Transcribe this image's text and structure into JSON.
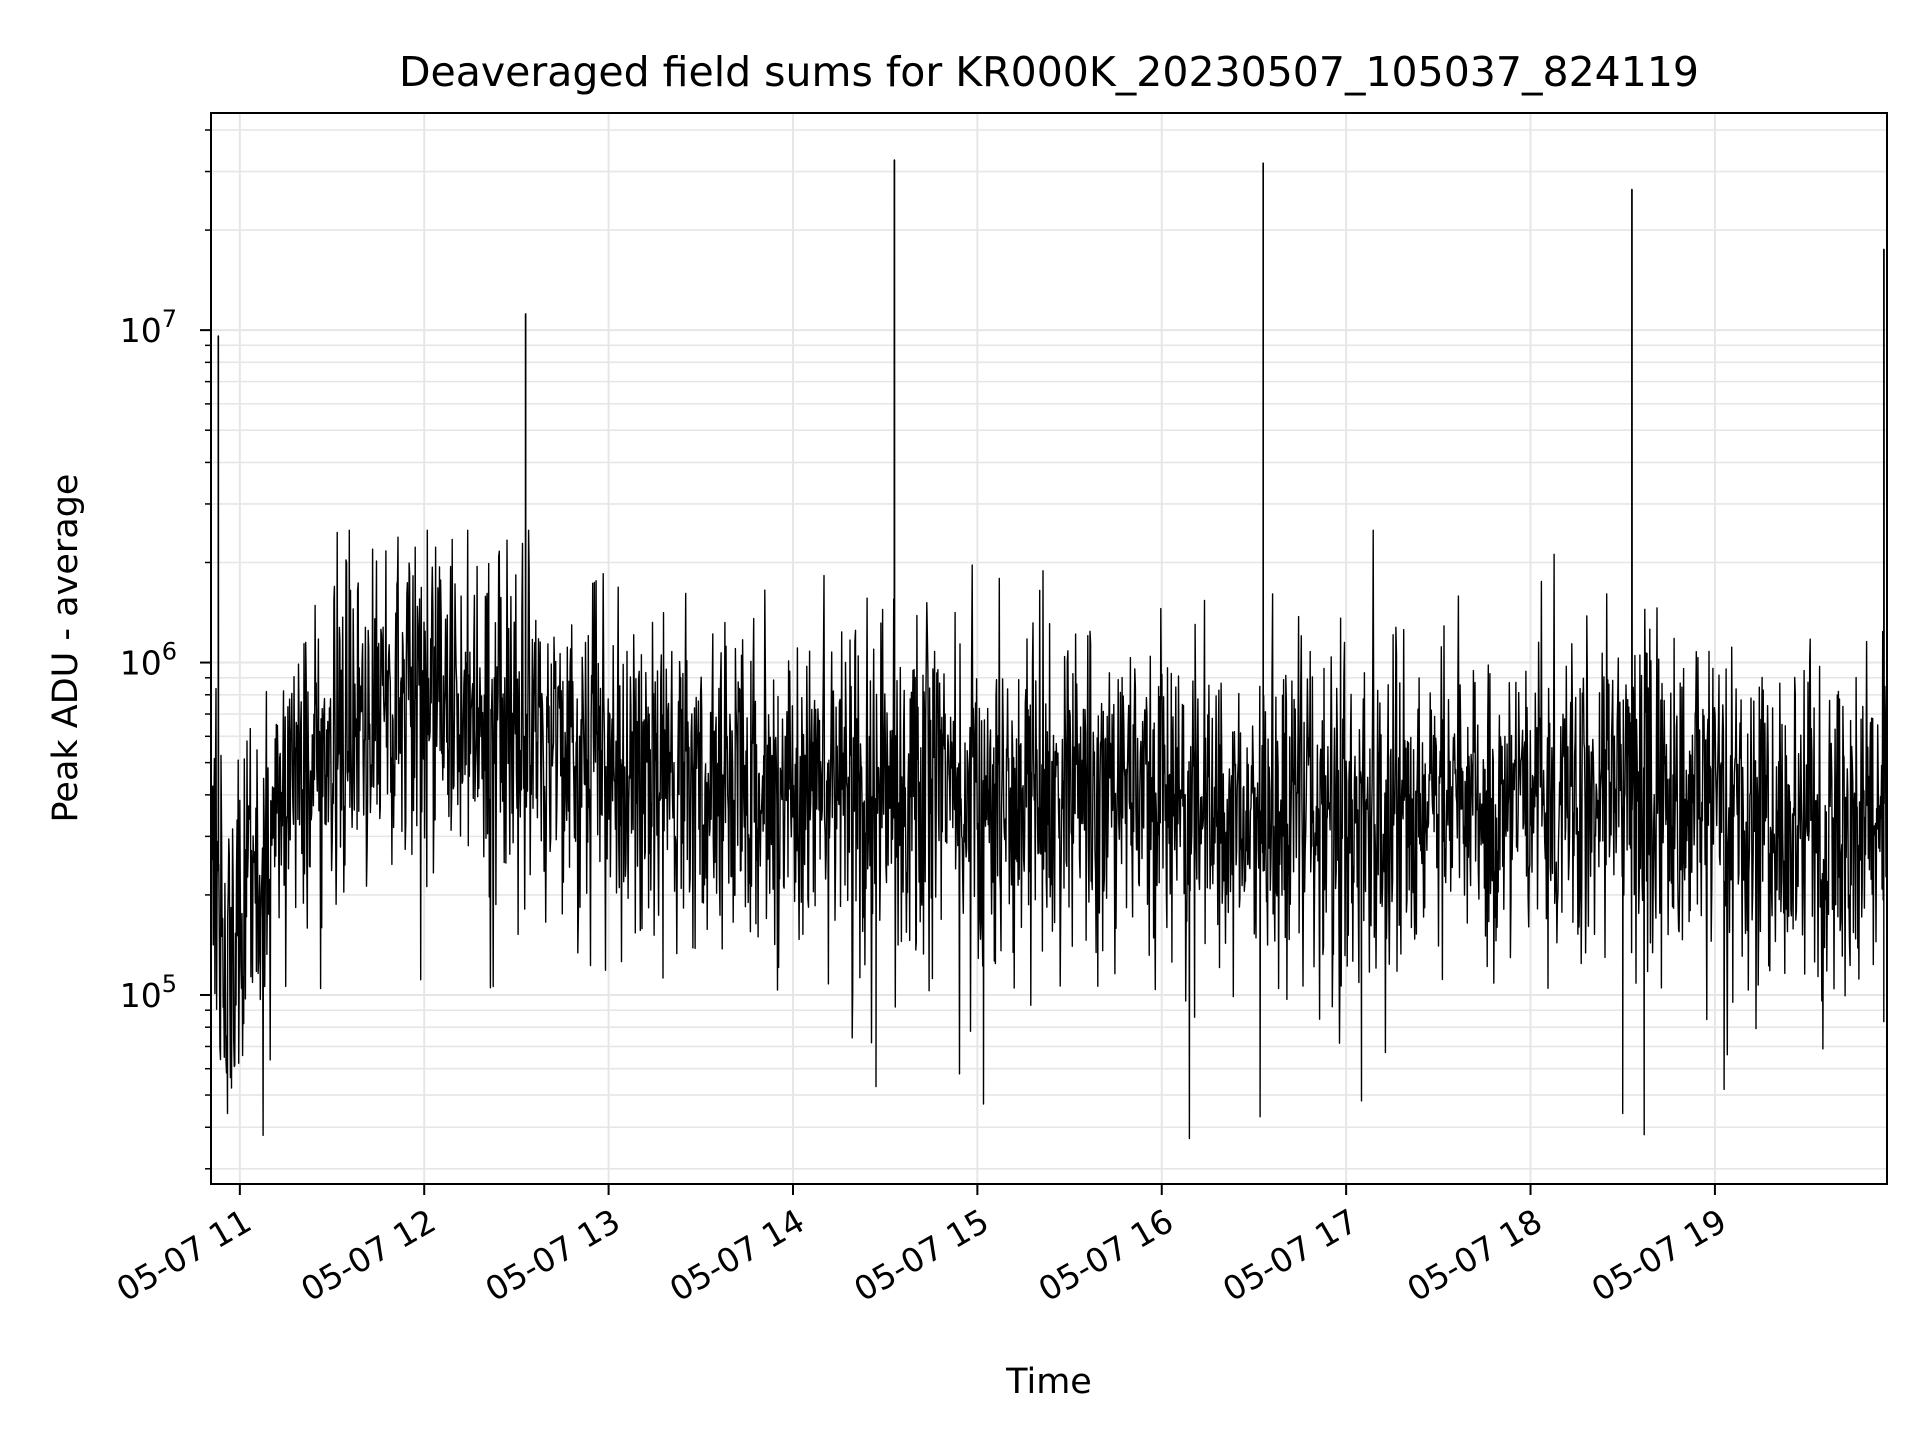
{
  "chart_data": {
    "type": "line",
    "title": "Deaveraged field sums for KR000K_20230507_105037_824119",
    "xlabel": "Time",
    "ylabel": "Peak ADU - average",
    "y_scale": "log",
    "ylim": [
      27000,
      45000000
    ],
    "xlim": [
      "05-07 10:50:37",
      "05-07 19:56"
    ],
    "grid": true,
    "line_color": "#000000",
    "x_tick_labels": [
      "05-07 11",
      "05-07 12",
      "05-07 13",
      "05-07 14",
      "05-07 15",
      "05-07 16",
      "05-07 17",
      "05-07 18",
      "05-07 19"
    ],
    "y_tick_labels": [
      {
        "base": "10",
        "exp": "5",
        "value": 100000
      },
      {
        "base": "10",
        "exp": "6",
        "value": 1000000
      },
      {
        "base": "10",
        "exp": "7",
        "value": 10000000
      }
    ],
    "baseline_segments": [
      {
        "x": "05-07 10:51",
        "y": 420000
      },
      {
        "x": "05-07 10:56",
        "y": 100000
      },
      {
        "x": "05-07 11:05",
        "y": 220000
      },
      {
        "x": "05-07 11:15",
        "y": 480000
      },
      {
        "x": "05-07 11:30",
        "y": 600000
      },
      {
        "x": "05-07 11:45",
        "y": 800000
      },
      {
        "x": "05-07 12:00",
        "y": 820000
      },
      {
        "x": "05-07 12:20",
        "y": 720000
      },
      {
        "x": "05-07 12:45",
        "y": 560000
      },
      {
        "x": "05-07 13:30",
        "y": 440000
      },
      {
        "x": "05-07 15:00",
        "y": 420000
      },
      {
        "x": "05-07 16:00",
        "y": 380000
      },
      {
        "x": "05-07 17:00",
        "y": 360000
      },
      {
        "x": "05-07 18:00",
        "y": 420000
      },
      {
        "x": "05-07 19:00",
        "y": 400000
      },
      {
        "x": "05-07 19:30",
        "y": 300000
      },
      {
        "x": "05-07 19:56",
        "y": 380000
      }
    ],
    "spikes": [
      {
        "x": "05-07 10:53",
        "y": 9600000
      },
      {
        "x": "05-07 12:33",
        "y": 11200000
      },
      {
        "x": "05-07 14:33",
        "y": 32500000
      },
      {
        "x": "05-07 16:33",
        "y": 31800000
      },
      {
        "x": "05-07 18:33",
        "y": 26500000
      },
      {
        "x": "05-07 19:55",
        "y": 17500000
      }
    ],
    "dips": [
      {
        "x": "05-07 10:56",
        "y": 44000
      },
      {
        "x": "05-07 14:27",
        "y": 53000
      },
      {
        "x": "05-07 15:02",
        "y": 47000
      },
      {
        "x": "05-07 16:09",
        "y": 37000
      },
      {
        "x": "05-07 16:32",
        "y": 43000
      },
      {
        "x": "05-07 17:05",
        "y": 48000
      },
      {
        "x": "05-07 18:30",
        "y": 44000
      },
      {
        "x": "05-07 18:37",
        "y": 38000
      },
      {
        "x": "05-07 19:03",
        "y": 52000
      }
    ]
  }
}
